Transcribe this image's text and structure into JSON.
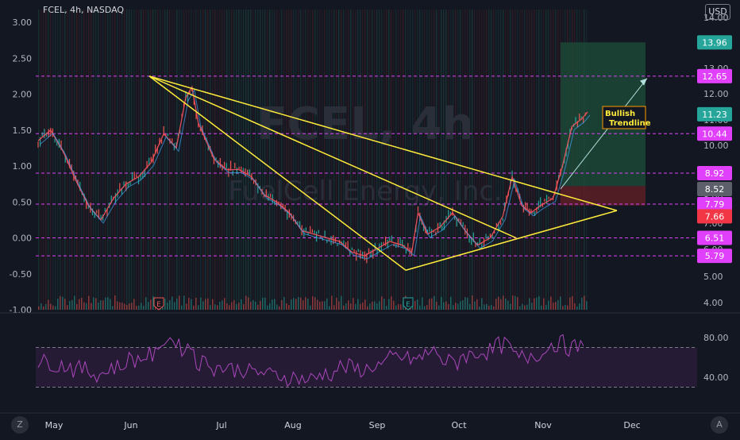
{
  "header": {
    "symbol": "FCEL",
    "interval": "4h",
    "exchange": "NASDAQ",
    "currency": "USD"
  },
  "watermark": {
    "title": "FCEL, 4h",
    "subtitle": "FuelCell Energy, Inc."
  },
  "colors": {
    "background": "#131722",
    "magenta": "#e040fb",
    "trendline": "#ffeb3b",
    "rsi": "#9c27b0",
    "up": "#26a69a",
    "down": "#ef5350",
    "ma": "#f7525f",
    "ma2": "#42a5f5"
  },
  "chart_data": [
    {
      "type": "line",
      "title": "FCEL, 4h, NASDAQ",
      "x_labels": [
        "May",
        "Jun",
        "Jul",
        "Aug",
        "Sep",
        "Oct",
        "Nov",
        "Dec"
      ],
      "left_axis_ticks": [
        "3.00",
        "2.50",
        "2.00",
        "1.50",
        "1.00",
        "0.50",
        "0.00",
        "-0.50",
        "-1.00"
      ],
      "right_axis_ticks": [
        "14.00",
        "13.00",
        "12.00",
        "11.00",
        "10.00",
        "9.00",
        "8.00",
        "7.00",
        "6.00",
        "5.00",
        "4.00"
      ],
      "ylim_left": [
        -1.0,
        3.0
      ],
      "log_scale_right": true,
      "price_path_left": [
        [
          0,
          1.35
        ],
        [
          4,
          1.5
        ],
        [
          8,
          1.2
        ],
        [
          12,
          0.8
        ],
        [
          16,
          0.45
        ],
        [
          20,
          0.25
        ],
        [
          24,
          0.55
        ],
        [
          28,
          0.75
        ],
        [
          32,
          0.85
        ],
        [
          36,
          1.05
        ],
        [
          40,
          1.45
        ],
        [
          44,
          1.25
        ],
        [
          47,
          1.95
        ],
        [
          49,
          2.1
        ],
        [
          51,
          1.6
        ],
        [
          53,
          1.4
        ],
        [
          56,
          1.1
        ],
        [
          60,
          0.95
        ],
        [
          64,
          0.95
        ],
        [
          68,
          0.85
        ],
        [
          72,
          0.6
        ],
        [
          76,
          0.5
        ],
        [
          80,
          0.35
        ],
        [
          84,
          0.1
        ],
        [
          88,
          0.05
        ],
        [
          92,
          0.0
        ],
        [
          96,
          -0.05
        ],
        [
          100,
          -0.2
        ],
        [
          104,
          -0.25
        ],
        [
          108,
          -0.15
        ],
        [
          112,
          -0.05
        ],
        [
          116,
          -0.1
        ],
        [
          119,
          -0.2
        ],
        [
          121,
          0.35
        ],
        [
          124,
          0.05
        ],
        [
          128,
          0.15
        ],
        [
          132,
          0.35
        ],
        [
          136,
          0.1
        ],
        [
          140,
          -0.1
        ],
        [
          144,
          0.0
        ],
        [
          148,
          0.3
        ],
        [
          151,
          0.85
        ],
        [
          154,
          0.45
        ],
        [
          157,
          0.35
        ],
        [
          160,
          0.45
        ],
        [
          164,
          0.55
        ],
        [
          167,
          1.0
        ],
        [
          170,
          1.55
        ],
        [
          173,
          1.65
        ],
        [
          175,
          1.75
        ]
      ],
      "series": [
        {
          "name": "RSI",
          "values": [
            55,
            52,
            48,
            44,
            50,
            58,
            62,
            78,
            70,
            55,
            50,
            48,
            45,
            42,
            40,
            38,
            44,
            50,
            48,
            52,
            60,
            58,
            65,
            55,
            62,
            66,
            72,
            60,
            64,
            74,
            70,
            66
          ]
        }
      ],
      "rsi_levels": [
        "80.00",
        "40.00"
      ],
      "rsi_upper_band": 70,
      "rsi_lower_band": 30,
      "earnings_markers": [
        {
          "label": "E",
          "x": "Jun"
        },
        {
          "label": "E",
          "x": "Sep"
        }
      ],
      "horizontal_levels": [
        {
          "label": "13.96",
          "y_left": 2.72,
          "color": "#26a69a",
          "dashed": false
        },
        {
          "label": "12.65",
          "y_left": 2.25,
          "color": "#e040fb",
          "dashed": true
        },
        {
          "label": "11.23",
          "y_left": 1.72,
          "color": "#26a69a",
          "dashed": false
        },
        {
          "label": "10.44",
          "y_left": 1.45,
          "color": "#e040fb",
          "dashed": true
        },
        {
          "label": "8.92",
          "y_left": 0.9,
          "color": "#e040fb",
          "dashed": true
        },
        {
          "label": "8.52",
          "y_left": 0.68,
          "color": "#5d606b",
          "dashed": false
        },
        {
          "label": "7.79",
          "y_left": 0.47,
          "color": "#e040fb",
          "dashed": true
        },
        {
          "label": "7.66",
          "y_left": 0.3,
          "color": "#f23645",
          "dashed": false
        },
        {
          "label": "6.51",
          "y_left": 0.0,
          "color": "#e040fb",
          "dashed": true
        },
        {
          "label": "5.79",
          "y_left": -0.25,
          "color": "#e040fb",
          "dashed": true
        }
      ],
      "annotation": {
        "text_line1": "Bullish",
        "text_line2": "Trendline"
      }
    }
  ]
}
